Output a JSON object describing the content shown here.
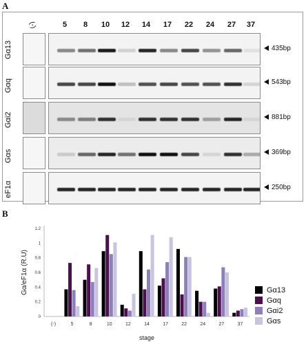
{
  "panel_a": {
    "letter": "A",
    "neg_label": "(-)",
    "lanes": [
      "5",
      "8",
      "10",
      "12",
      "14",
      "17",
      "22",
      "24",
      "27",
      "37"
    ],
    "rows": [
      {
        "name": "Gα13",
        "bp": "435bp",
        "intensities": [
          0.45,
          0.55,
          0.95,
          0.12,
          0.9,
          0.45,
          0.75,
          0.4,
          0.6,
          0.05
        ]
      },
      {
        "name": "Gαq",
        "bp": "543bp",
        "intensities": [
          0.75,
          0.75,
          1.0,
          0.2,
          0.7,
          0.75,
          0.7,
          0.7,
          0.85,
          0.1
        ]
      },
      {
        "name": "Gαi2",
        "bp": "881bp",
        "intensities": [
          0.45,
          0.5,
          0.85,
          0.1,
          0.85,
          0.85,
          0.85,
          0.35,
          0.9,
          0.1
        ]
      },
      {
        "name": "Gαs",
        "bp": "369bp",
        "intensities": [
          0.15,
          0.6,
          0.9,
          0.55,
          1.0,
          1.0,
          0.75,
          0.1,
          0.85,
          0.3
        ]
      },
      {
        "name": "eF1α",
        "bp": "250bp",
        "intensities": [
          0.9,
          0.9,
          0.9,
          0.9,
          0.9,
          0.9,
          0.9,
          0.9,
          0.9,
          0.9
        ]
      }
    ]
  },
  "panel_b": {
    "letter": "B"
  },
  "chart_data": {
    "type": "bar",
    "categories": [
      "(-)",
      "5",
      "8",
      "10",
      "12",
      "14",
      "17",
      "22",
      "24",
      "27",
      "37"
    ],
    "series": [
      {
        "name": "Gα13",
        "color": "#000000",
        "values": [
          0,
          0.37,
          0.5,
          0.89,
          0.16,
          0.89,
          0.42,
          0.92,
          0.35,
          0.38,
          0.05
        ]
      },
      {
        "name": "Gαq",
        "color": "#4d0f4f",
        "values": [
          0,
          0.73,
          0.71,
          1.11,
          0.11,
          0.37,
          0.52,
          0.3,
          0.2,
          0.41,
          0.08
        ]
      },
      {
        "name": "Gαi2",
        "color": "#8d7fbb",
        "values": [
          0,
          0.36,
          0.47,
          0.85,
          0.08,
          0.64,
          0.74,
          0.81,
          0.2,
          0.67,
          0.1
        ]
      },
      {
        "name": "Gαs",
        "color": "#c6c4e0",
        "values": [
          0,
          0.14,
          0.66,
          1.01,
          0.31,
          1.11,
          1.08,
          0.81,
          0.05,
          0.6,
          0.12
        ]
      }
    ],
    "xlabel": "stage",
    "ylabel": "Gα/eF1α (R.U)",
    "ylim": [
      0,
      1.2
    ],
    "yticks": [
      "0",
      "0.2",
      "0.4",
      "0.6",
      "0.8",
      "1",
      "1.2"
    ],
    "grid": false,
    "legend": "right"
  }
}
